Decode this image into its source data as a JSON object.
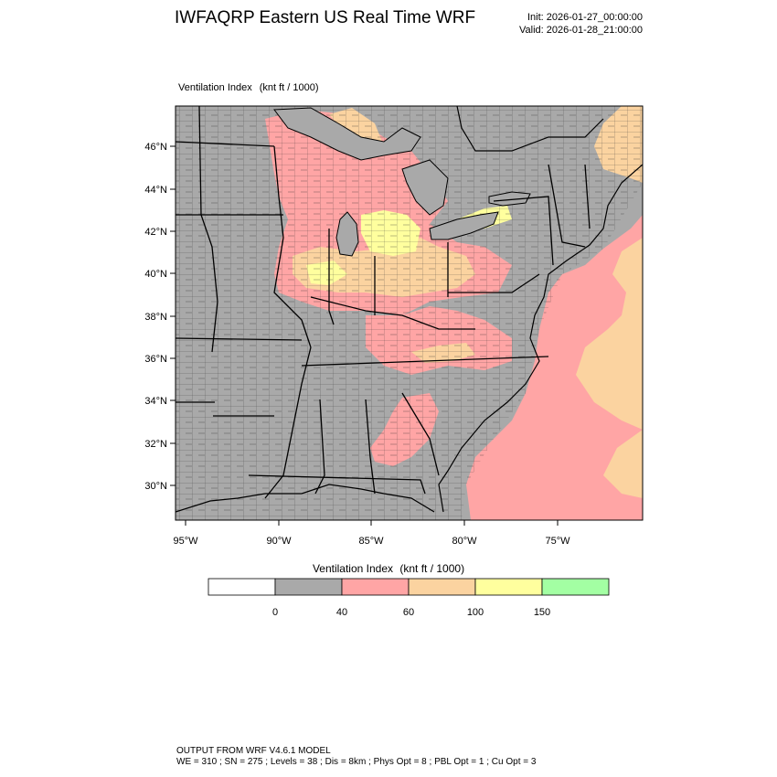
{
  "header": {
    "title": "IWFAQRP Eastern US Real Time WRF",
    "init": "Init: 2026-01-27_00:00:00",
    "valid": "Valid: 2026-01-28_21:00:00"
  },
  "map": {
    "field_name": "Ventilation Index",
    "units": "(knt ft / 1000)",
    "lat_labels": [
      "46°N",
      "44°N",
      "42°N",
      "40°N",
      "38°N",
      "36°N",
      "34°N",
      "32°N",
      "30°N"
    ],
    "lon_labels": [
      "95°W",
      "90°W",
      "85°W",
      "80°W",
      "75°W"
    ],
    "colors": {
      "ocean_gray": "#a9a9a9",
      "land_gray": "#a9a9a9",
      "pink": "#ffa5a5",
      "tan": "#fbd3a0",
      "yellow": "#ffff9e",
      "green": "#a3ffa3",
      "white": "#ffffff"
    }
  },
  "legend": {
    "title_name": "Ventilation Index",
    "title_units": "(knt ft / 1000)",
    "bins": [
      {
        "color": "#ffffff"
      },
      {
        "color": "#a9a9a9"
      },
      {
        "color": "#ffa5a5"
      },
      {
        "color": "#fbd3a0"
      },
      {
        "color": "#ffff9e"
      },
      {
        "color": "#a3ffa3"
      }
    ],
    "ticks": [
      "0",
      "40",
      "60",
      "100",
      "150"
    ]
  },
  "footer": {
    "line1": "OUTPUT FROM WRF V4.6.1 MODEL",
    "line2": "WE = 310 ; SN = 275 ; Levels = 38 ; Dis = 8km ; Phys Opt = 8 ; PBL Opt = 1 ; Cu Opt = 3"
  }
}
